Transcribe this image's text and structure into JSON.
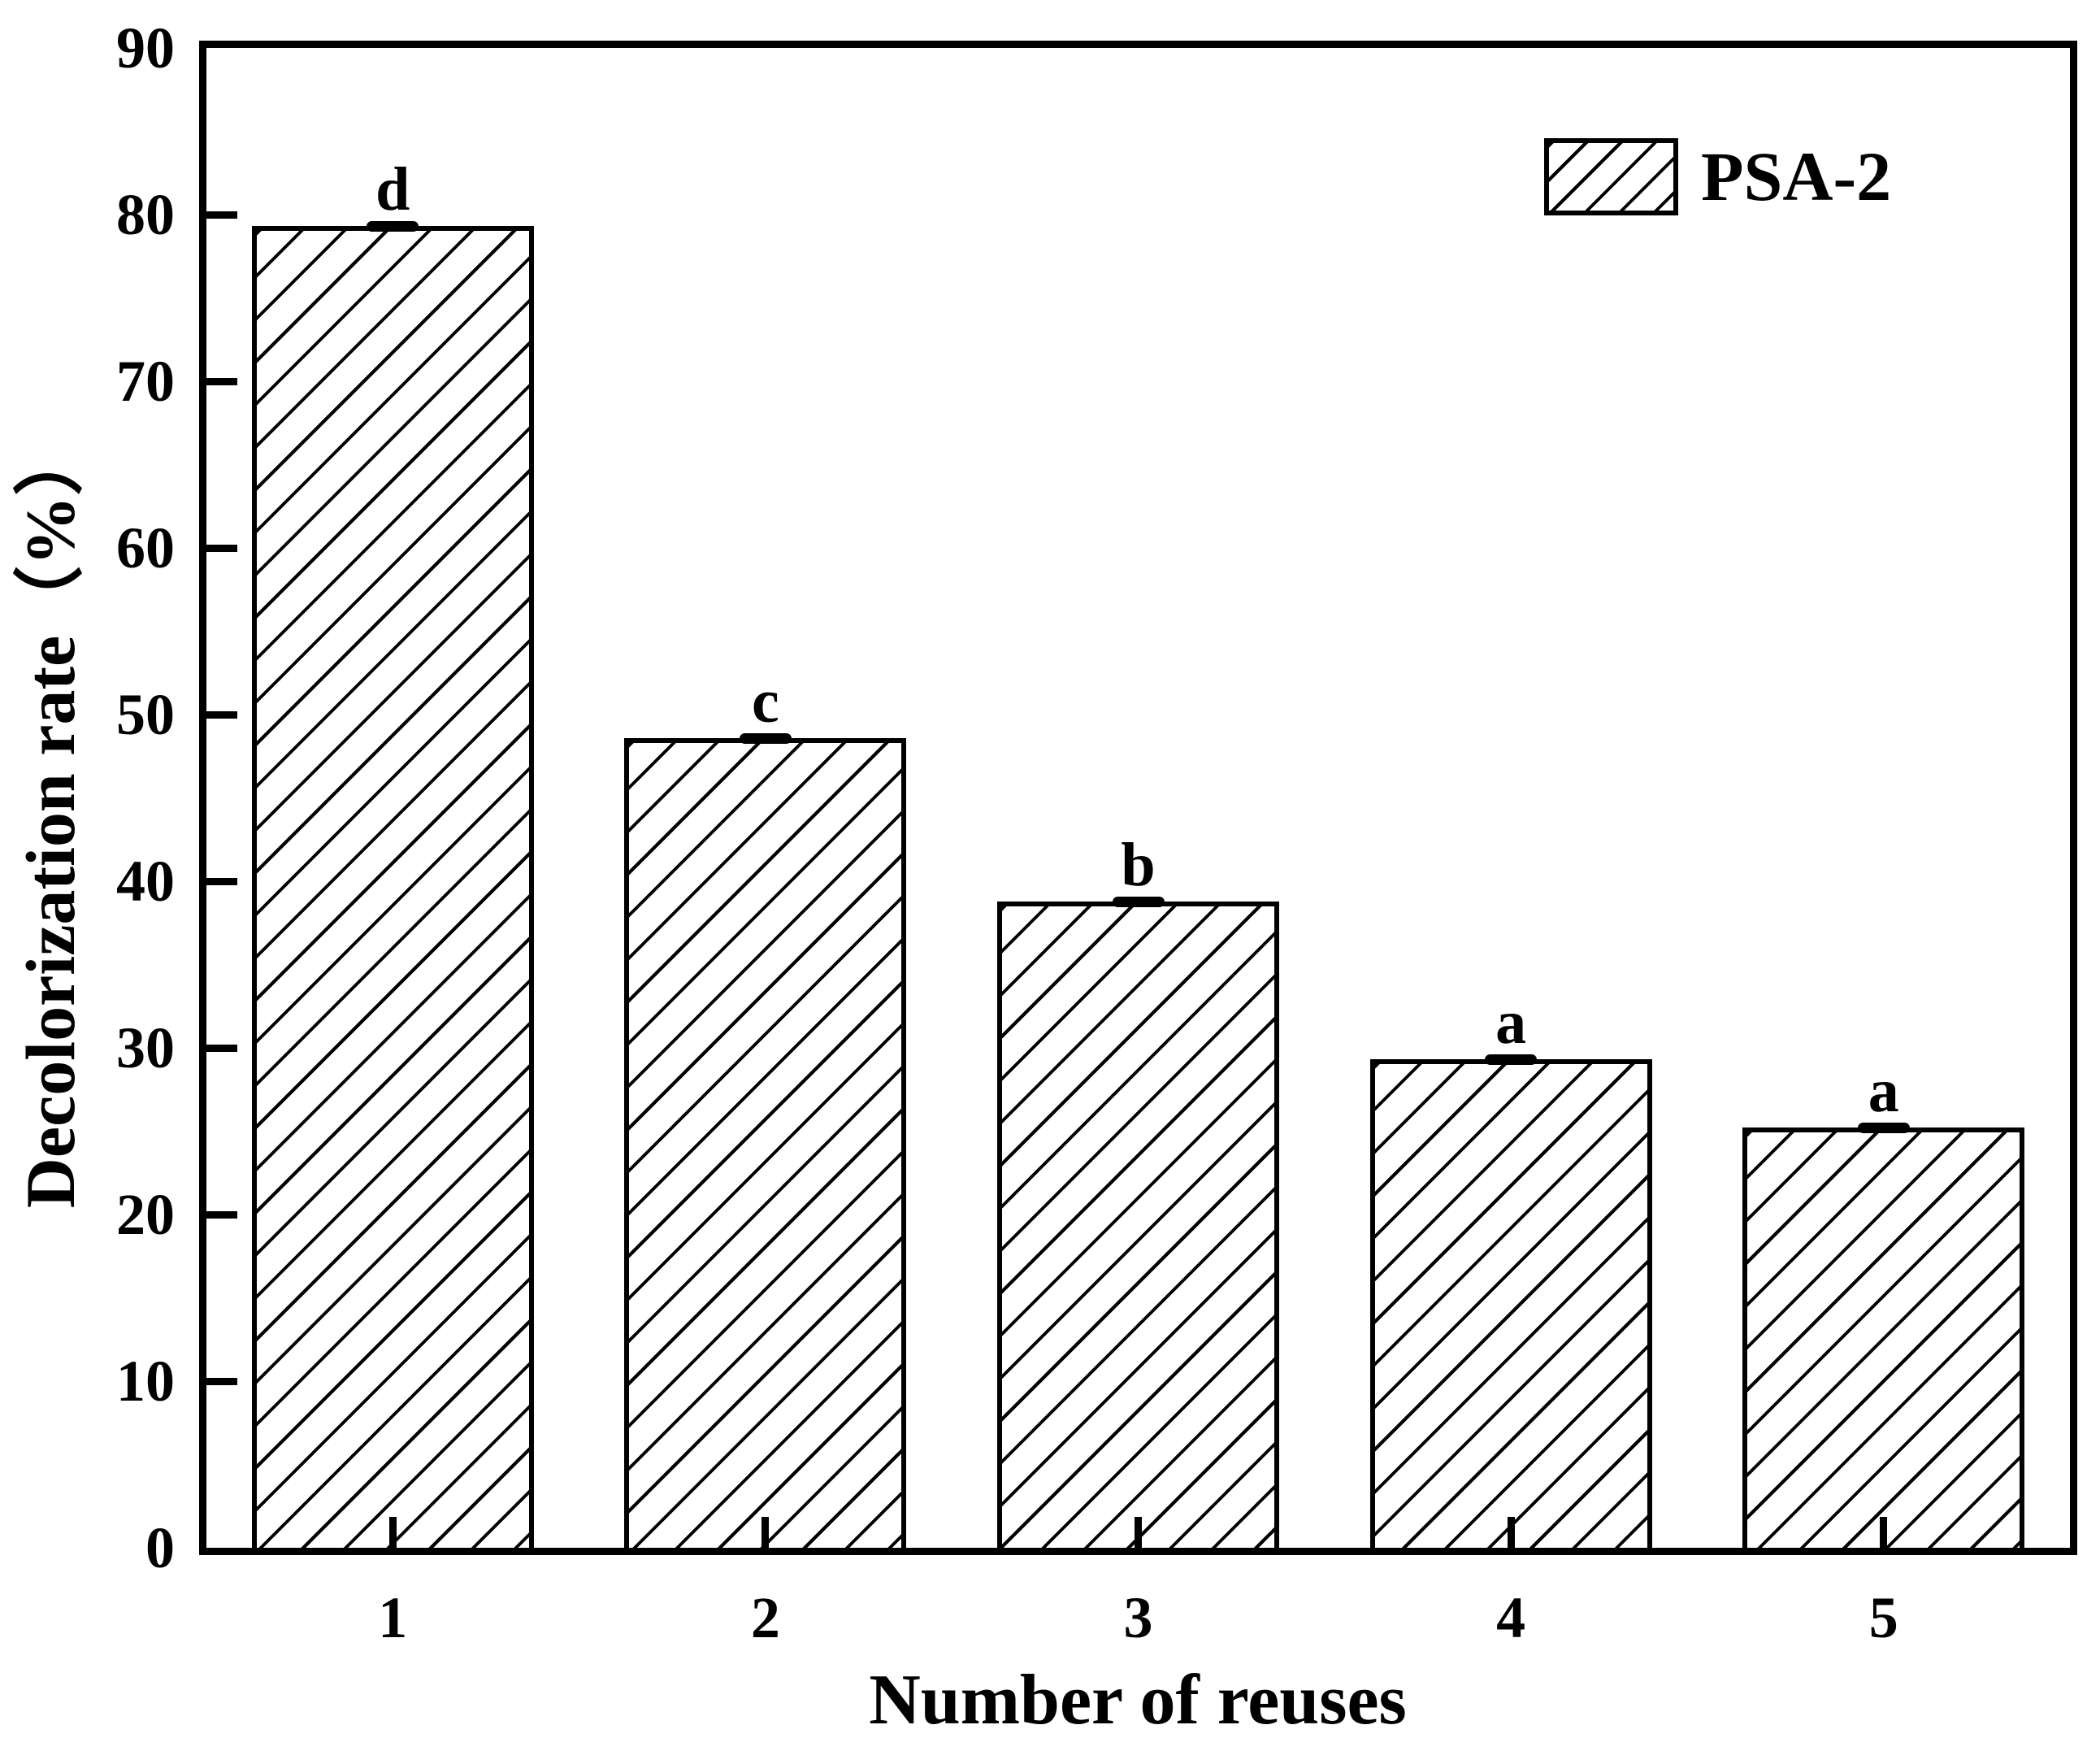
{
  "figure": {
    "background": "#ffffff",
    "foreground": "#000000"
  },
  "chart_data": {
    "type": "bar",
    "title": "",
    "xlabel": "Number of reuses",
    "ylabel": "Decolorization rate（%）",
    "categories": [
      "1",
      "2",
      "3",
      "4",
      "5"
    ],
    "series": [
      {
        "name": "PSA-2",
        "values": [
          79.3,
          48.6,
          38.8,
          29.3,
          25.2
        ]
      }
    ],
    "significance_letters": [
      "d",
      "c",
      "b",
      "a",
      "a"
    ],
    "error_bars": {
      "visible": true,
      "approx_magnitude": 0.3,
      "style": "small black cap at each bar top"
    },
    "ylim": [
      0,
      90
    ],
    "yticks": [
      0,
      10,
      20,
      30,
      40,
      50,
      60,
      70,
      80,
      90
    ],
    "grid": false,
    "legend": {
      "position": "top-right",
      "entries": [
        {
          "label": "PSA-2",
          "fill": "forward-diagonal-hatch"
        }
      ]
    },
    "bar_fill": "#ffffff",
    "bar_edge": "#000000",
    "bar_hatch": "forward-diagonal"
  }
}
